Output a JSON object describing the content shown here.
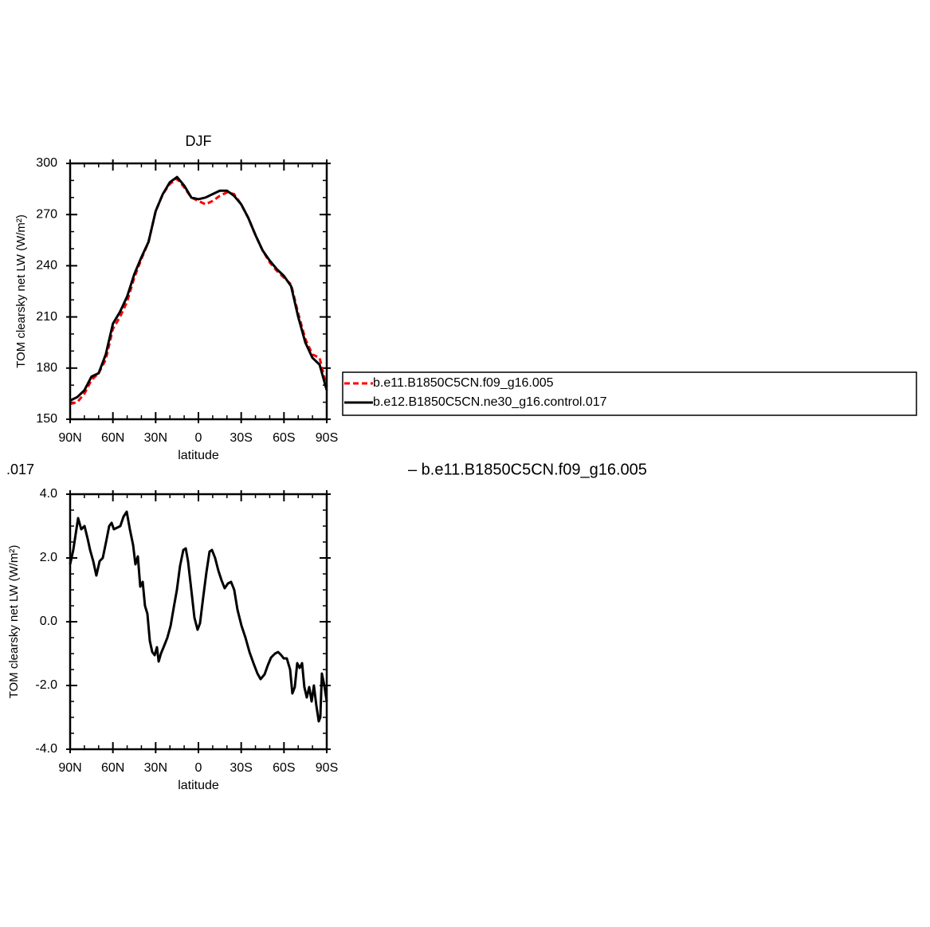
{
  "chart_data": [
    {
      "type": "line",
      "title": "DJF",
      "xlabel": "latitude",
      "ylabel": "TOM clearsky net LW (W/m²)",
      "x": [
        90,
        85,
        80,
        75,
        70,
        65,
        60,
        55,
        50,
        45,
        40,
        35,
        30,
        25,
        20,
        15,
        10,
        5,
        0,
        -5,
        -10,
        -15,
        -20,
        -25,
        -30,
        -35,
        -40,
        -45,
        -50,
        -55,
        -60,
        -65,
        -70,
        -75,
        -80,
        -85,
        -90
      ],
      "series": [
        {
          "name": "b.e11.B1850C5CN.f09_g16.005",
          "color": "#ff0000",
          "dashed": true,
          "values": [
            159,
            160,
            165,
            173,
            177,
            185,
            203,
            210,
            219,
            233,
            244,
            254,
            272,
            282,
            288,
            291,
            286,
            280,
            278,
            276,
            278,
            281,
            283,
            282,
            276,
            268,
            258,
            249,
            242,
            237,
            233,
            229,
            212,
            197,
            188,
            186,
            169
          ]
        },
        {
          "name": "b.e12.B1850C5CN.ne30_g16.control.017",
          "color": "#000000",
          "dashed": false,
          "values": [
            161,
            163,
            167,
            175,
            177,
            188,
            206,
            213,
            222,
            235,
            245,
            254,
            272,
            282,
            289,
            292,
            287,
            280,
            279,
            280,
            282,
            284,
            284,
            281,
            276,
            268,
            258,
            249,
            243,
            238,
            234,
            228,
            210,
            195,
            186,
            182,
            167
          ]
        }
      ],
      "xlim": [
        90,
        -90
      ],
      "xticks": [
        {
          "value": 90,
          "label": "90N"
        },
        {
          "value": 60,
          "label": "60N"
        },
        {
          "value": 30,
          "label": "30N"
        },
        0,
        {
          "value": -30,
          "label": "30S"
        },
        {
          "value": -60,
          "label": "60S"
        },
        {
          "value": -90,
          "label": "90S"
        }
      ],
      "ylim": [
        150,
        300
      ],
      "yticks": [
        150,
        180,
        210,
        240,
        270,
        300
      ],
      "legend": "right"
    },
    {
      "type": "line",
      "xlabel": "latitude",
      "ylabel": "TOM clearsky net LW (W/m²)",
      "x": [
        90,
        87.8,
        84.4,
        82.2,
        79.9,
        77.7,
        76.0,
        73.8,
        71.6,
        69.3,
        67.1,
        64.8,
        62.6,
        60.9,
        59.3,
        57.0,
        54.8,
        52.5,
        50.3,
        48.1,
        45.8,
        44.2,
        42.5,
        40.8,
        39.1,
        37.5,
        35.8,
        34.1,
        32.4,
        30.7,
        29.1,
        27.9,
        26.3,
        24.0,
        21.8,
        19.5,
        17.3,
        15.1,
        12.9,
        10.6,
        8.9,
        7.3,
        5.0,
        2.8,
        0.6,
        -1.1,
        -3.3,
        -5.6,
        -7.8,
        -9.5,
        -11.7,
        -14.0,
        -16.2,
        -18.4,
        -20.7,
        -22.9,
        -25.1,
        -27.4,
        -30.2,
        -33.0,
        -35.8,
        -38.6,
        -41.4,
        -43.6,
        -46.4,
        -48.6,
        -50.9,
        -53.7,
        -55.9,
        -58.1,
        -59.8,
        -62.0,
        -64.3,
        -65.9,
        -67.6,
        -69.3,
        -71.0,
        -72.7,
        -74.3,
        -76.0,
        -77.7,
        -79.4,
        -81.0,
        -82.7,
        -84.4,
        -85.5,
        -86.6,
        -88.3,
        -90
      ],
      "series": [
        {
          "color": "#000000",
          "dashed": false,
          "values": [
            1.8,
            2.25,
            3.25,
            2.9,
            3.0,
            2.6,
            2.25,
            1.9,
            1.45,
            1.9,
            2.0,
            2.5,
            3.0,
            3.1,
            2.9,
            2.95,
            3.0,
            3.3,
            3.45,
            2.9,
            2.4,
            1.8,
            2.05,
            1.1,
            1.25,
            0.5,
            0.25,
            -0.6,
            -0.95,
            -1.05,
            -0.8,
            -1.25,
            -1.0,
            -0.75,
            -0.5,
            -0.125,
            0.45,
            1.0,
            1.75,
            2.25,
            2.3,
            1.9,
            1.0,
            0.125,
            -0.25,
            -0.05,
            0.75,
            1.55,
            2.2,
            2.25,
            2.0,
            1.6,
            1.3,
            1.05,
            1.2,
            1.25,
            1.0,
            0.375,
            -0.125,
            -0.5,
            -0.95,
            -1.3,
            -1.625,
            -1.8,
            -1.65,
            -1.375,
            -1.125,
            -1.0,
            -0.95,
            -1.05,
            -1.15,
            -1.15,
            -1.5,
            -2.25,
            -2.05,
            -1.3,
            -1.45,
            -1.3,
            -2.05,
            -2.375,
            -2.05,
            -2.5,
            -2.0,
            -2.625,
            -3.125,
            -3.0,
            -1.625,
            -2.0,
            -2.5
          ]
        }
      ],
      "xlim": [
        90,
        -90
      ],
      "xticks": [
        {
          "value": 90,
          "label": "90N"
        },
        {
          "value": 60,
          "label": "60N"
        },
        {
          "value": 30,
          "label": "30N"
        },
        0,
        {
          "value": -30,
          "label": "30S"
        },
        {
          "value": -60,
          "label": "60S"
        },
        {
          "value": -90,
          "label": "90S"
        }
      ],
      "ylim": [
        -4,
        4
      ],
      "yticks": [
        {
          "value": -4,
          "label": "-4.0"
        },
        {
          "value": -2,
          "label": "-2.0"
        },
        {
          "value": 0,
          "label": "0.0"
        },
        {
          "value": 2,
          "label": "2.0"
        },
        {
          "value": 4,
          "label": "4.0"
        }
      ]
    }
  ],
  "overlay_text": [
    ".017",
    "– b.e11.B1850C5CN.f09_g16.005"
  ]
}
